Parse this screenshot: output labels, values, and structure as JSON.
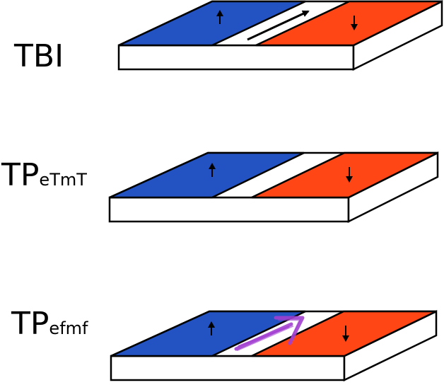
{
  "colors": {
    "spin_up_domain": "#2352c2",
    "spin_down_domain": "#ff4614",
    "slab_body": "#ffffff",
    "outline": "#000000",
    "purple_arrow": "#a23fd0"
  },
  "icons": {
    "up": "arrow-up-icon",
    "down": "arrow-down-icon"
  },
  "rows": [
    {
      "label_main": "TBI",
      "label_sub": "",
      "boundary_arrow": "black-straight-arrow"
    },
    {
      "label_main": "TP",
      "label_sub": "eTmT",
      "boundary_arrow": "none"
    },
    {
      "label_main": "TP",
      "label_sub": "efmf",
      "boundary_arrow": "purple-handdrawn-arrow"
    }
  ]
}
